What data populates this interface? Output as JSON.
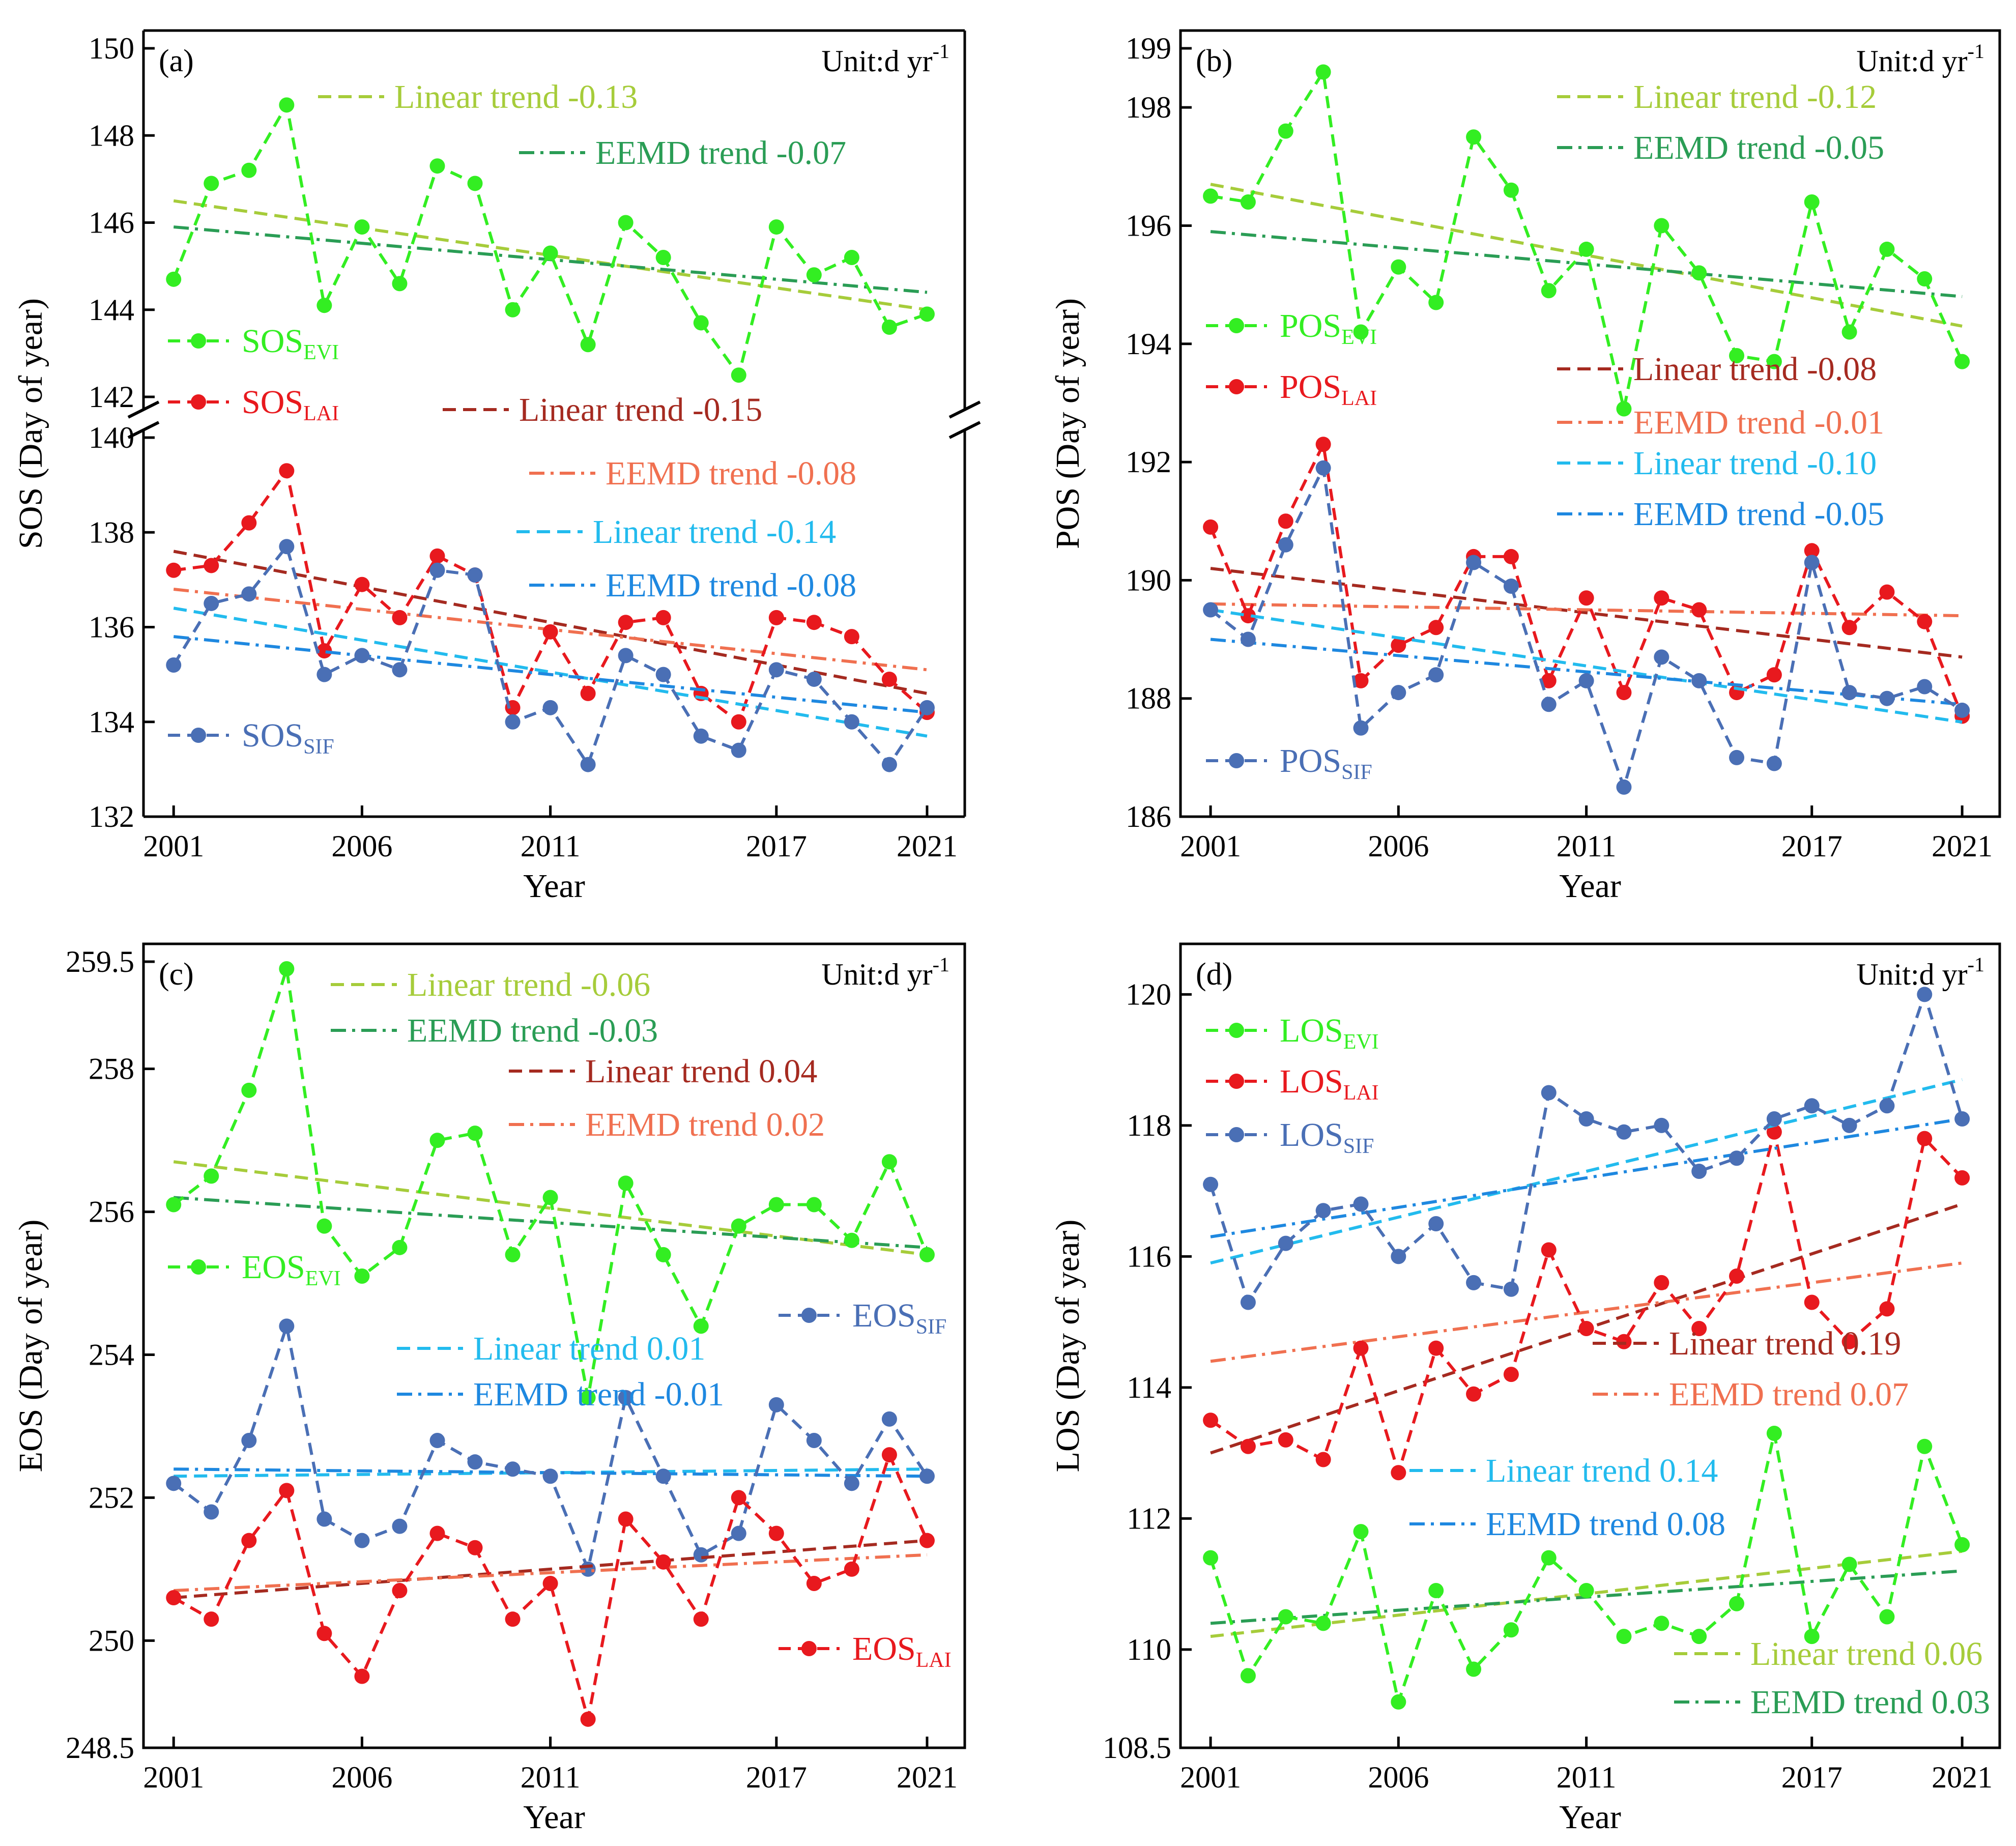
{
  "figure": {
    "xlabel": "Year",
    "x_ticks": [
      "2001",
      "2006",
      "2011",
      "2017",
      "2021"
    ],
    "unit_text": "Unit:d yr",
    "unit_sup": "-1"
  },
  "chart_data": [
    {
      "panel": "(a)",
      "type": "line",
      "ylabel": "SOS (Day of year)",
      "x": [
        2001,
        2002,
        2003,
        2004,
        2005,
        2006,
        2007,
        2008,
        2009,
        2010,
        2011,
        2012,
        2013,
        2014,
        2015,
        2016,
        2017,
        2018,
        2019,
        2020,
        2021
      ],
      "xlim": [
        2000.2,
        2022.0
      ],
      "broken_axis": true,
      "upper_ylim": [
        142,
        150
      ],
      "upper_yticks": [
        "142",
        "144",
        "146",
        "148",
        "150"
      ],
      "lower_ylim": [
        132,
        140
      ],
      "lower_yticks": [
        "132",
        "134",
        "136",
        "138",
        "140"
      ],
      "series": [
        {
          "name": "SOS",
          "sub": "EVI",
          "color": "#33ee22",
          "segment": "upper",
          "values": [
            144.7,
            146.9,
            147.2,
            148.7,
            144.1,
            145.9,
            144.6,
            147.3,
            146.9,
            144.0,
            145.3,
            143.2,
            146.0,
            145.2,
            143.7,
            142.5,
            145.9,
            144.8,
            145.2,
            143.6,
            143.9
          ],
          "trends": [
            {
              "label": "Linear trend -0.13",
              "style": "dash",
              "color": "#a6cc3a",
              "start": 146.5,
              "end": 144.0
            },
            {
              "label": "EEMD trend -0.07",
              "style": "dashdot",
              "color": "#2a9d55",
              "start": 145.9,
              "end": 144.4
            }
          ]
        },
        {
          "name": "SOS",
          "sub": "LAI",
          "color": "#e8191e",
          "segment": "lower",
          "values": [
            137.2,
            137.3,
            138.2,
            139.3,
            135.5,
            136.9,
            136.2,
            137.5,
            137.1,
            134.3,
            135.9,
            134.6,
            136.1,
            136.2,
            134.6,
            134.0,
            136.2,
            136.1,
            135.8,
            134.9,
            134.2
          ],
          "trends": [
            {
              "label": "Linear trend -0.15",
              "style": "dash",
              "color": "#a52a20",
              "start": 137.6,
              "end": 134.6
            },
            {
              "label": "EEMD trend -0.08",
              "style": "dashdot",
              "color": "#f07050",
              "start": 136.8,
              "end": 135.1
            }
          ]
        },
        {
          "name": "SOS",
          "sub": "SIF",
          "color": "#4a6fb5",
          "segment": "lower",
          "values": [
            135.2,
            136.5,
            136.7,
            137.7,
            135.0,
            135.4,
            135.1,
            137.2,
            137.1,
            134.0,
            134.3,
            133.1,
            135.4,
            135.0,
            133.7,
            133.4,
            135.1,
            134.9,
            134.0,
            133.1,
            134.3
          ],
          "trends": [
            {
              "label": "Linear trend -0.14",
              "style": "dash",
              "color": "#22bbee",
              "start": 136.4,
              "end": 133.7
            },
            {
              "label": "EEMD trend -0.08",
              "style": "dashdot",
              "color": "#1e88e0",
              "start": 135.8,
              "end": 134.2
            }
          ]
        }
      ]
    },
    {
      "panel": "(b)",
      "type": "line",
      "ylabel": "POS (Day of year)",
      "x": [
        2001,
        2002,
        2003,
        2004,
        2005,
        2006,
        2007,
        2008,
        2009,
        2010,
        2011,
        2012,
        2013,
        2014,
        2015,
        2016,
        2017,
        2018,
        2019,
        2020,
        2021
      ],
      "xlim": [
        2000.2,
        2022.0
      ],
      "ylim": [
        186,
        199
      ],
      "yticks": [
        "186",
        "188",
        "190",
        "192",
        "194",
        "196",
        "198",
        "199"
      ],
      "series": [
        {
          "name": "POS",
          "sub": "EVI",
          "color": "#33ee22",
          "values": [
            196.5,
            196.4,
            197.6,
            198.6,
            194.2,
            195.3,
            194.7,
            197.5,
            196.6,
            194.9,
            195.6,
            192.9,
            196.0,
            195.2,
            193.8,
            193.7,
            196.4,
            194.2,
            195.6,
            195.1,
            193.7
          ],
          "trends": [
            {
              "label": "Linear trend -0.12",
              "style": "dash",
              "color": "#a6cc3a",
              "start": 196.7,
              "end": 194.3
            },
            {
              "label": "EEMD trend -0.05",
              "style": "dashdot",
              "color": "#2a9d55",
              "start": 195.9,
              "end": 194.8
            }
          ]
        },
        {
          "name": "POS",
          "sub": "LAI",
          "color": "#e8191e",
          "values": [
            190.9,
            189.4,
            191.0,
            192.3,
            188.3,
            188.9,
            189.2,
            190.4,
            190.4,
            188.3,
            189.7,
            188.1,
            189.7,
            189.5,
            188.1,
            188.4,
            190.5,
            189.2,
            189.8,
            189.3,
            187.7
          ],
          "trends": [
            {
              "label": "Linear trend -0.08",
              "style": "dash",
              "color": "#a52a20",
              "start": 190.2,
              "end": 188.7
            },
            {
              "label": "EEMD trend -0.01",
              "style": "dashdot",
              "color": "#f07050",
              "start": 189.6,
              "end": 189.4
            }
          ]
        },
        {
          "name": "POS",
          "sub": "SIF",
          "color": "#4a6fb5",
          "values": [
            189.5,
            189.0,
            190.6,
            191.9,
            187.5,
            188.1,
            188.4,
            190.3,
            189.9,
            187.9,
            188.3,
            186.5,
            188.7,
            188.3,
            187.0,
            186.9,
            190.3,
            188.1,
            188.0,
            188.2,
            187.8
          ],
          "trends": [
            {
              "label": "Linear trend -0.10",
              "style": "dash",
              "color": "#22bbee",
              "start": 189.5,
              "end": 187.6
            },
            {
              "label": "EEMD trend -0.05",
              "style": "dashdot",
              "color": "#1e88e0",
              "start": 189.0,
              "end": 187.9
            }
          ]
        }
      ]
    },
    {
      "panel": "(c)",
      "type": "line",
      "ylabel": "EOS (Day of year)",
      "x": [
        2001,
        2002,
        2003,
        2004,
        2005,
        2006,
        2007,
        2008,
        2009,
        2010,
        2011,
        2012,
        2013,
        2014,
        2015,
        2016,
        2017,
        2018,
        2019,
        2020,
        2021
      ],
      "xlim": [
        2000.2,
        2022.0
      ],
      "ylim": [
        248.5,
        259.5
      ],
      "yticks": [
        "248.5",
        "250",
        "252",
        "254",
        "256",
        "258",
        "259.5"
      ],
      "series": [
        {
          "name": "EOS",
          "sub": "EVI",
          "color": "#33ee22",
          "values": [
            256.1,
            256.5,
            257.7,
            259.4,
            255.8,
            255.1,
            255.5,
            257.0,
            257.1,
            255.4,
            256.2,
            253.4,
            256.4,
            255.4,
            254.4,
            255.8,
            256.1,
            256.1,
            255.6,
            256.7,
            255.4
          ],
          "trends": [
            {
              "label": "Linear trend -0.06",
              "style": "dash",
              "color": "#a6cc3a",
              "start": 256.7,
              "end": 255.4
            },
            {
              "label": "EEMD trend -0.03",
              "style": "dashdot",
              "color": "#2a9d55",
              "start": 256.2,
              "end": 255.5
            }
          ]
        },
        {
          "name": "EOS",
          "sub": "SIF",
          "color": "#4a6fb5",
          "values": [
            252.2,
            251.8,
            252.8,
            254.4,
            251.7,
            251.4,
            251.6,
            252.8,
            252.5,
            252.4,
            252.3,
            251.0,
            253.4,
            252.3,
            251.2,
            251.5,
            253.3,
            252.8,
            252.2,
            253.1,
            252.3
          ],
          "trends": [
            {
              "label": "Linear trend 0.01",
              "style": "dash",
              "color": "#22bbee",
              "start": 252.3,
              "end": 252.4
            },
            {
              "label": "EEMD trend -0.01",
              "style": "dashdot",
              "color": "#1e88e0",
              "start": 252.4,
              "end": 252.3
            }
          ]
        },
        {
          "name": "EOS",
          "sub": "LAI",
          "color": "#e8191e",
          "values": [
            250.6,
            250.3,
            251.4,
            252.1,
            250.1,
            249.5,
            250.7,
            251.5,
            251.3,
            250.3,
            250.8,
            248.9,
            251.7,
            251.1,
            250.3,
            252.0,
            251.5,
            250.8,
            251.0,
            252.6,
            251.4
          ],
          "trends": [
            {
              "label": "Linear trend 0.04",
              "style": "dash",
              "color": "#a52a20",
              "start": 250.6,
              "end": 251.4
            },
            {
              "label": "EEMD trend 0.02",
              "style": "dashdot",
              "color": "#f07050",
              "start": 250.7,
              "end": 251.2
            }
          ]
        }
      ]
    },
    {
      "panel": "(d)",
      "type": "line",
      "ylabel": "LOS (Day of year)",
      "x": [
        2001,
        2002,
        2003,
        2004,
        2005,
        2006,
        2007,
        2008,
        2009,
        2010,
        2011,
        2012,
        2013,
        2014,
        2015,
        2016,
        2017,
        2018,
        2019,
        2020,
        2021
      ],
      "xlim": [
        2000.2,
        2022.0
      ],
      "ylim": [
        108.5,
        120.5
      ],
      "yticks": [
        "108.5",
        "110",
        "112",
        "114",
        "116",
        "118",
        "120"
      ],
      "series": [
        {
          "name": "LOS",
          "sub": "EVI",
          "color": "#33ee22",
          "values": [
            111.4,
            109.6,
            110.5,
            110.4,
            111.8,
            109.2,
            110.9,
            109.7,
            110.3,
            111.4,
            110.9,
            110.2,
            110.4,
            110.2,
            110.7,
            113.3,
            110.2,
            111.3,
            110.5,
            113.1,
            111.6
          ],
          "trends": [
            {
              "label": "Linear trend 0.06",
              "style": "dash",
              "color": "#a6cc3a",
              "start": 110.2,
              "end": 111.5
            },
            {
              "label": "EEMD trend 0.03",
              "style": "dashdot",
              "color": "#2a9d55",
              "start": 110.4,
              "end": 111.2
            }
          ]
        },
        {
          "name": "LOS",
          "sub": "LAI",
          "color": "#e8191e",
          "values": [
            113.5,
            113.1,
            113.2,
            112.9,
            114.6,
            112.7,
            114.6,
            113.9,
            114.2,
            116.1,
            114.9,
            114.7,
            115.6,
            114.9,
            115.7,
            117.9,
            115.3,
            114.7,
            115.2,
            117.8,
            117.2
          ],
          "trends": [
            {
              "label": "Linear trend 0.19",
              "style": "dash",
              "color": "#a52a20",
              "start": 113.0,
              "end": 116.8
            },
            {
              "label": "EEMD trend 0.07",
              "style": "dashdot",
              "color": "#f07050",
              "start": 114.4,
              "end": 115.9
            }
          ]
        },
        {
          "name": "LOS",
          "sub": "SIF",
          "color": "#4a6fb5",
          "values": [
            117.1,
            115.3,
            116.2,
            116.7,
            116.8,
            116.0,
            116.5,
            115.6,
            115.5,
            118.5,
            118.1,
            117.9,
            118.0,
            117.3,
            117.5,
            118.1,
            118.3,
            118.0,
            118.3,
            120.0,
            118.1
          ],
          "trends": [
            {
              "label": "Linear trend 0.14",
              "style": "dash",
              "color": "#22bbee",
              "start": 115.9,
              "end": 118.7
            },
            {
              "label": "EEMD trend 0.08",
              "style": "dashdot",
              "color": "#1e88e0",
              "start": 116.3,
              "end": 118.1
            }
          ]
        }
      ]
    }
  ]
}
